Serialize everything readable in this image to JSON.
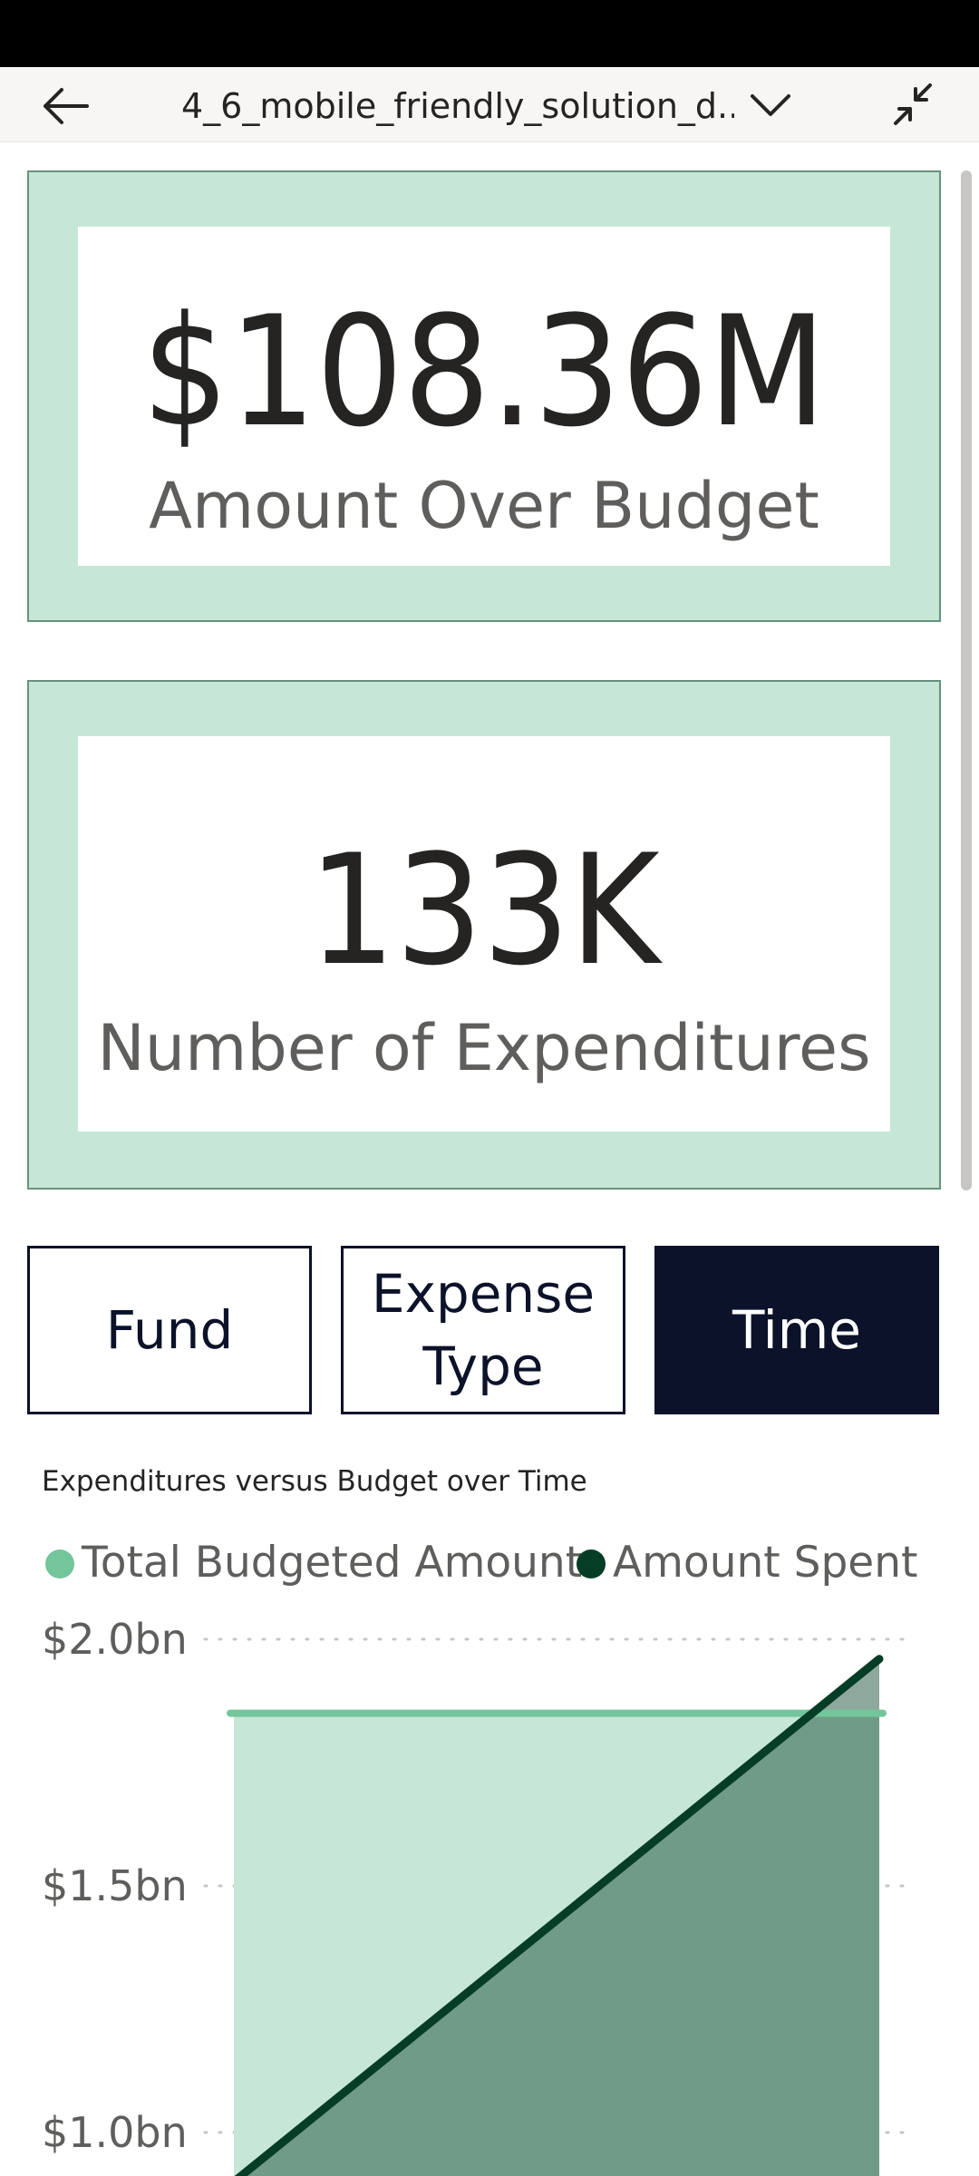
{
  "header": {
    "title": "4_6_mobile_friendly_solution_d...",
    "back_icon": "arrow-left-icon",
    "dropdown_icon": "chevron-down-icon",
    "collapse_icon": "collapse-icon"
  },
  "kpis": [
    {
      "value": "$108.36M",
      "label": "Amount Over Budget"
    },
    {
      "value": "133K",
      "label": "Number of Expenditures"
    }
  ],
  "nav_buttons": [
    {
      "label": "Fund",
      "active": false
    },
    {
      "label": "Expense\nType",
      "active": false
    },
    {
      "label": "Time",
      "active": true
    }
  ],
  "colors": {
    "card_fill": "#c6e7d6",
    "budget_series": "#73c69b",
    "spent_series": "#063d26",
    "active_button": "#0b1229"
  },
  "chart_data": {
    "type": "area",
    "title": "Expenditures versus Budget over Time",
    "legend_position": "top-left",
    "series": [
      {
        "name": "Total Budgeted Amount",
        "values": [
          1.85,
          1.85
        ]
      },
      {
        "name": "Amount Spent",
        "values": [
          0.9,
          1.96
        ]
      }
    ],
    "y_ticks": [
      "$2.0bn",
      "$1.5bn",
      "$1.0bn"
    ],
    "y_tick_values": [
      2.0,
      1.5,
      1.0
    ],
    "ylim": [
      0.9,
      2.0
    ],
    "grid": true
  }
}
